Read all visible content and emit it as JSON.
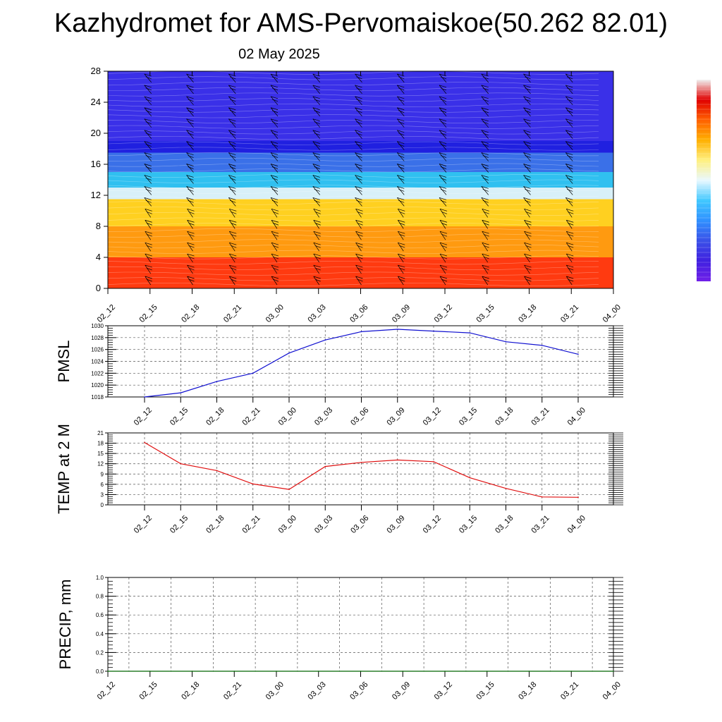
{
  "header": {
    "title": "Kazhydromet for AMS-Pervomaiskoe(50.262 82.01)",
    "date": "02 May 2025"
  },
  "colors": {
    "pmsl_line": "#1010d0",
    "temp_line": "#e01010",
    "precip_line": "#006400",
    "grid": "#555555"
  },
  "chart_data": [
    {
      "type": "heatmap",
      "name": "wind-temperature-cross-section",
      "x_ticks": [
        "02_12",
        "02_15",
        "02_18",
        "02_21",
        "03_00",
        "03_03",
        "03_06",
        "03_09",
        "03_12",
        "03_15",
        "03_18",
        "03_21",
        "04_00"
      ],
      "y_ticks": [
        0,
        4,
        8,
        12,
        16,
        20,
        24,
        28
      ],
      "ylim": [
        0,
        28
      ],
      "color_bands_by_level": [
        {
          "from": 0,
          "to": 4,
          "color": "#ff3a10"
        },
        {
          "from": 4,
          "to": 8,
          "color": "#ff9a10"
        },
        {
          "from": 8,
          "to": 11.5,
          "color": "#ffd020"
        },
        {
          "from": 11.5,
          "to": 13,
          "color": "#d8f0f8"
        },
        {
          "from": 13,
          "to": 15,
          "color": "#30c0f0"
        },
        {
          "from": 15,
          "to": 17.5,
          "color": "#3a70e8"
        },
        {
          "from": 17.5,
          "to": 19,
          "color": "#2020e0"
        },
        {
          "from": 19,
          "to": 28,
          "color": "#3a30e8"
        }
      ],
      "colorbar": [
        "#f0f0f0",
        "#e00000",
        "#ff6000",
        "#ffb000",
        "#fff080",
        "#e8f8ff",
        "#40c8ff",
        "#3090ff",
        "#3a50e8",
        "#4020e0",
        "#7020e8"
      ]
    },
    {
      "type": "line",
      "name": "pmsl",
      "ylabel": "PMSL",
      "x": [
        "02_12",
        "02_15",
        "02_18",
        "02_21",
        "03_00",
        "03_03",
        "03_06",
        "03_09",
        "03_12",
        "03_15",
        "03_18",
        "03_21",
        "04_00"
      ],
      "y_ticks": [
        1018,
        1020,
        1022,
        1024,
        1026,
        1028,
        1030
      ],
      "ylim": [
        1018,
        1030
      ],
      "series": [
        {
          "values": [
            1018.0,
            1018.7,
            1020.6,
            1022.0,
            1025.4,
            1027.6,
            1029.0,
            1029.4,
            1029.1,
            1028.8,
            1027.3,
            1026.7,
            1025.2
          ]
        }
      ]
    },
    {
      "type": "line",
      "name": "temp-2m",
      "ylabel": "TEMP at 2 M",
      "x": [
        "02_12",
        "02_15",
        "02_18",
        "02_21",
        "03_00",
        "03_03",
        "03_06",
        "03_09",
        "03_12",
        "03_15",
        "03_18",
        "03_21",
        "04_00"
      ],
      "y_ticks": [
        0,
        3,
        6,
        9,
        12,
        15,
        18,
        21
      ],
      "ylim": [
        0,
        21
      ],
      "series": [
        {
          "values": [
            18.2,
            12.0,
            10.0,
            6.1,
            4.5,
            11.2,
            12.4,
            13.1,
            12.6,
            7.9,
            4.8,
            2.3,
            2.2
          ]
        }
      ]
    },
    {
      "type": "line",
      "name": "precip",
      "ylabel": "PRECIP, mm",
      "x": [
        "02_12",
        "02_15",
        "02_18",
        "02_21",
        "03_00",
        "03_03",
        "03_06",
        "03_09",
        "03_12",
        "03_15",
        "03_18",
        "03_21",
        "04_00"
      ],
      "y_ticks": [
        "0.0",
        "0.2",
        "0.4",
        "0.6",
        "0.8",
        "1.0"
      ],
      "ylim": [
        0,
        1
      ],
      "series": [
        {
          "values": [
            0,
            0,
            0,
            0,
            0,
            0,
            0,
            0,
            0,
            0,
            0,
            0,
            0
          ]
        }
      ]
    }
  ]
}
